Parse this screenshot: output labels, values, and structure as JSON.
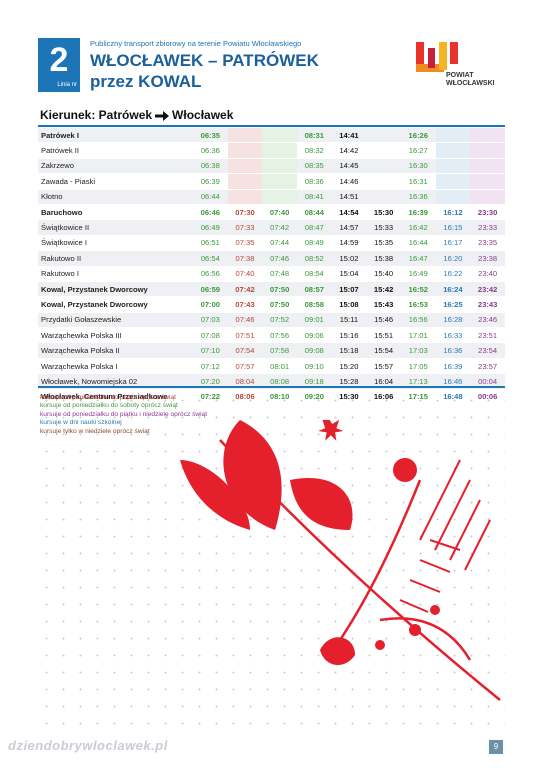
{
  "header": {
    "line_number": "2",
    "line_label": "Linia nr",
    "subtitle": "Publiczny transport zbiorowy na terenie Powiatu Włocławskiego",
    "title": "WŁOCŁAWEK – PATRÓWEK",
    "title_line2": "przez KOWAL",
    "logo_text": "POWIAT WŁOCŁAWSKI"
  },
  "direction": {
    "label": "Kierunek: Patrówek",
    "destination": "Włocławek"
  },
  "table": {
    "rows": [
      [
        "Patrówek I",
        "06:35",
        null,
        null,
        "08:31",
        "14:41",
        null,
        "16:26",
        null,
        null
      ],
      [
        "Patrówek II",
        "06:36",
        null,
        null,
        "08:32",
        "14:42",
        null,
        "16:27",
        null,
        null
      ],
      [
        "Zakrzewo",
        "06:38",
        null,
        null,
        "08:35",
        "14:45",
        null,
        "16:30",
        null,
        null
      ],
      [
        "Zawada - Piaski",
        "06:39",
        null,
        null,
        "08:36",
        "14:46",
        null,
        "16:31",
        null,
        null
      ],
      [
        "Kłotno",
        "06:44",
        null,
        null,
        "08:41",
        "14:51",
        null,
        "16:36",
        null,
        null
      ],
      [
        "Baruchowo",
        "06:46",
        "07:30",
        "07:40",
        "08:44",
        "14:54",
        "15:30",
        "16:39",
        "16:12",
        "23:30"
      ],
      [
        "Świątkowice II",
        "06:49",
        "07:33",
        "07:42",
        "08:47",
        "14:57",
        "15:33",
        "16:42",
        "16:15",
        "23:33"
      ],
      [
        "Świątkowice I",
        "06:51",
        "07:35",
        "07:44",
        "08:49",
        "14:59",
        "15:35",
        "16:44",
        "16:17",
        "23:35"
      ],
      [
        "Rakutowo II",
        "06:54",
        "07:38",
        "07:46",
        "08:52",
        "15:02",
        "15:38",
        "16:47",
        "16:20",
        "23:38"
      ],
      [
        "Rakutowo I",
        "06:56",
        "07:40",
        "07:48",
        "08:54",
        "15:04",
        "15:40",
        "16:49",
        "16:22",
        "23:40"
      ],
      [
        "Kowal, Przystanek Dworcowy",
        "06:59",
        "07:42",
        "07:50",
        "08:57",
        "15:07",
        "15:42",
        "16:52",
        "16:24",
        "23:42"
      ],
      [
        "Kowal, Przystanek Dworcowy",
        "07:00",
        "07:43",
        "07:50",
        "08:58",
        "15:08",
        "15:43",
        "16:53",
        "16:25",
        "23:43"
      ],
      [
        "Przydatki Gołaszewskie",
        "07:03",
        "07:46",
        "07:52",
        "09:01",
        "15:11",
        "15:46",
        "16:56",
        "16:28",
        "23:46"
      ],
      [
        "Warząchewka Polska III",
        "07:08",
        "07:51",
        "07:56",
        "09:06",
        "15:16",
        "15:51",
        "17:01",
        "16:33",
        "23:51"
      ],
      [
        "Warząchewka Polska II",
        "07:10",
        "07:54",
        "07:58",
        "09:08",
        "15:18",
        "15:54",
        "17:03",
        "16:36",
        "23:54"
      ],
      [
        "Warząchewka Polska I",
        "07:12",
        "07:57",
        "08:01",
        "09:10",
        "15:20",
        "15:57",
        "17:05",
        "16:39",
        "23:57"
      ],
      [
        "Włocławek, Nowomiejska 02",
        "07:20",
        "08:04",
        "08:08",
        "09:18",
        "15:28",
        "16:04",
        "17:13",
        "16:46",
        "00:04"
      ],
      [
        "Włocławek, Centrum Przesiadkowe",
        "07:22",
        "08:06",
        "08:10",
        "09:20",
        "15:30",
        "16:06",
        "17:15",
        "16:48",
        "00:06"
      ]
    ]
  },
  "legend": [
    "kursuje od poniedziałku do piątku oprócz świąt",
    "kursuje od poniedziałku do soboty oprócz świąt",
    "kursuje od poniedziałku do piątku i niedzielę oprócz świąt",
    "kursuje w dni nauki szkolnej",
    "kursuje tylko w niedziele oprócz świąt"
  ],
  "footer": {
    "watermark": "dziendobrywloclawek.pl",
    "page_number": "9"
  }
}
